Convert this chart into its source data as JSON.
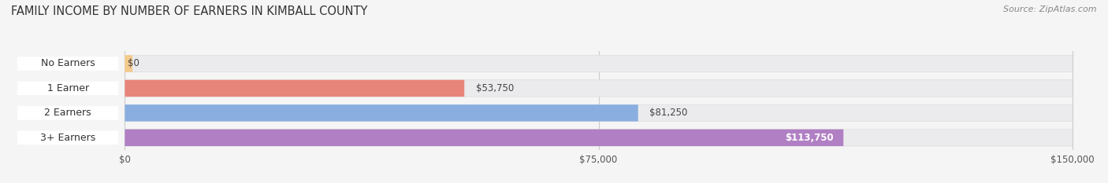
{
  "title": "FAMILY INCOME BY NUMBER OF EARNERS IN KIMBALL COUNTY",
  "source": "Source: ZipAtlas.com",
  "categories": [
    "No Earners",
    "1 Earner",
    "2 Earners",
    "3+ Earners"
  ],
  "values": [
    0,
    53750,
    81250,
    113750
  ],
  "bar_colors": [
    "#f5c98a",
    "#e8857a",
    "#8aaee0",
    "#b07fc4"
  ],
  "value_labels": [
    "$0",
    "$53,750",
    "$81,250",
    "$113,750"
  ],
  "value_in_bar": [
    false,
    false,
    false,
    true
  ],
  "xlim_max": 150000,
  "xticks": [
    0,
    75000,
    150000
  ],
  "xtick_labels": [
    "$0",
    "$75,000",
    "$150,000"
  ],
  "background_color": "#f5f5f5",
  "bar_bg_color": "#ebebee",
  "bar_border_color": "#dddddd",
  "pill_color": "#ffffff",
  "title_fontsize": 10.5,
  "source_fontsize": 8,
  "label_fontsize": 9,
  "value_fontsize": 8.5,
  "tick_fontsize": 8.5
}
